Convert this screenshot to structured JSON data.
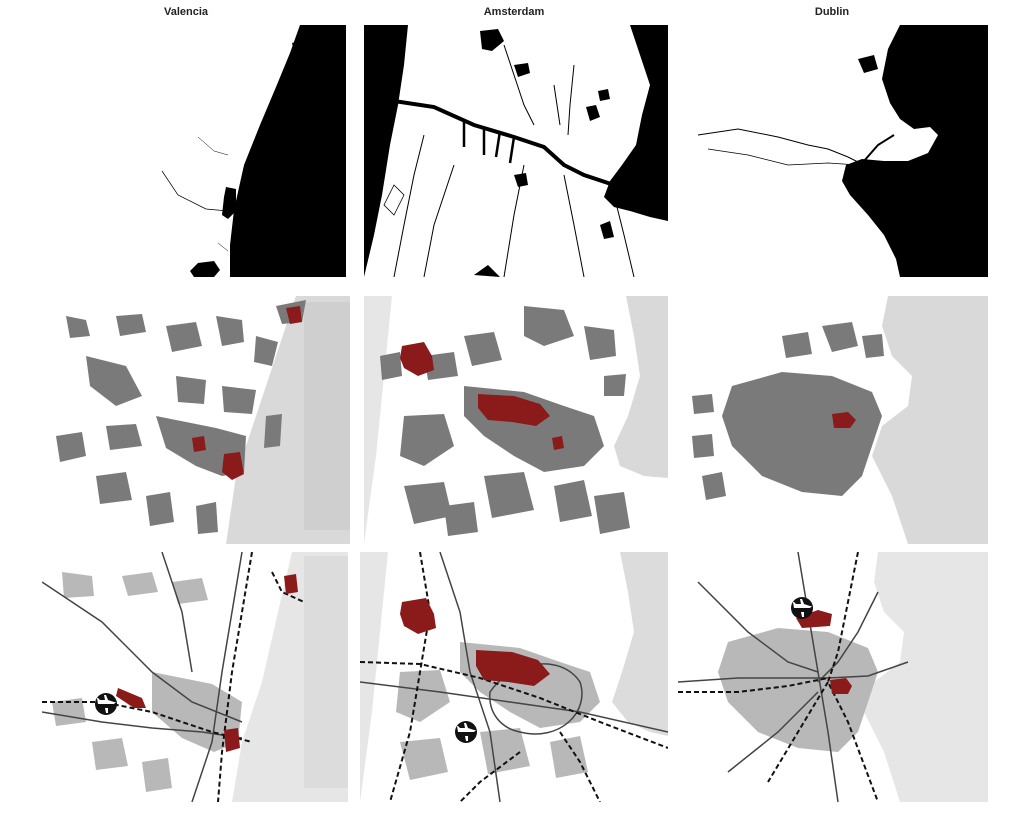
{
  "columns": [
    {
      "id": "valencia",
      "title": "Valencia"
    },
    {
      "id": "amsterdam",
      "title": "Amsterdam"
    },
    {
      "id": "dublin",
      "title": "Dublin"
    }
  ],
  "rows": [
    {
      "id": "water",
      "fill": "#000000"
    },
    {
      "id": "urban",
      "fill": "#7a7a7a"
    },
    {
      "id": "infrastructure",
      "fill": "#b8b8b8"
    }
  ],
  "colors": {
    "highlight": "#8b1a1a",
    "urban": "#7a7a7a",
    "urban_light": "#b8b8b8",
    "water_dark": "#000000",
    "water_light": "#d9d9d9",
    "water_lighter": "#e6e6e6",
    "roads": "#444444"
  },
  "icons": {
    "airport": "airplane-icon"
  }
}
